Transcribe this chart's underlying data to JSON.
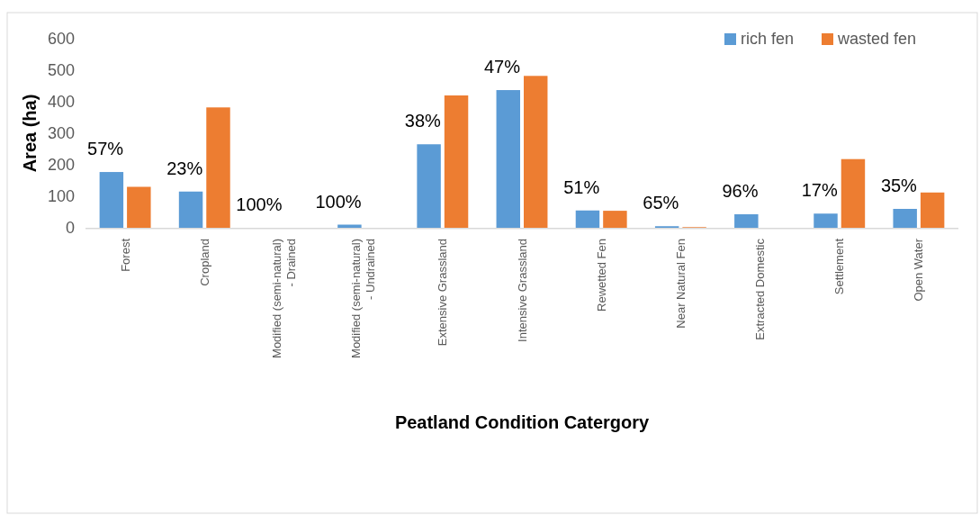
{
  "chart_data": {
    "type": "bar",
    "xlabel": "Peatland Condition Catergory",
    "ylabel": "Area (ha)",
    "categories": [
      "Forest",
      "Cropland",
      "Modified (semi-natural) - Drained",
      "Modified (semi-natural) - Undrained",
      "Extensive Grassland",
      "Intensive Grassland",
      "Rewetted Fen",
      "Near Natural Fen",
      "Extracted Domestic",
      "Settlement",
      "Open Water"
    ],
    "series": [
      {
        "name": "rich fen",
        "color": "#5b9bd5",
        "values": [
          177,
          115,
          0,
          10,
          265,
          437,
          55,
          5,
          43,
          45,
          60
        ]
      },
      {
        "name": "wasted fen",
        "color": "#ed7d31",
        "values": [
          130,
          382,
          0,
          0,
          420,
          482,
          54,
          2,
          0,
          218,
          112
        ]
      }
    ],
    "ylim": [
      0,
      600
    ],
    "yticks": [
      0,
      100,
      200,
      300,
      400,
      500,
      600
    ],
    "grid": false,
    "legend": "top right",
    "annotations": [
      "57%",
      "23%",
      "100%",
      "100%",
      "38%",
      "47%",
      "51%",
      "65%",
      "96%",
      "17%",
      "35%"
    ]
  }
}
